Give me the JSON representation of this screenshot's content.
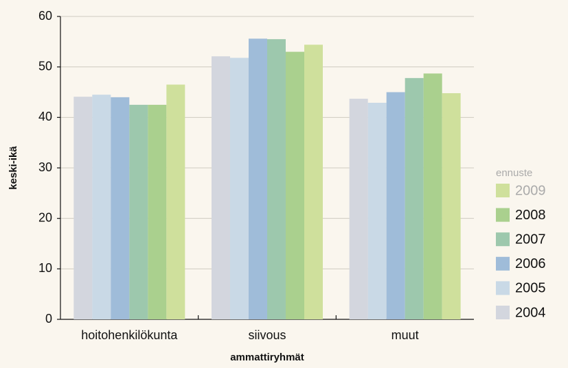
{
  "chart_data": {
    "type": "bar",
    "xlabel": "ammattiryhmät",
    "ylabel": "keski-ikä",
    "annotation": "ennuste",
    "categories": [
      "hoitohenkilökunta",
      "siivous",
      "muut"
    ],
    "series": [
      {
        "name": "2004",
        "color": "#d3d6de",
        "values": [
          44.1,
          52.1,
          43.7
        ]
      },
      {
        "name": "2005",
        "color": "#c9d9e6",
        "values": [
          44.5,
          51.8,
          42.9
        ]
      },
      {
        "name": "2006",
        "color": "#9fbcd9",
        "values": [
          44.0,
          55.6,
          45.0
        ]
      },
      {
        "name": "2007",
        "color": "#9dc8ad",
        "values": [
          42.5,
          55.5,
          47.8
        ]
      },
      {
        "name": "2008",
        "color": "#aad08e",
        "values": [
          42.5,
          53.0,
          48.7
        ]
      },
      {
        "name": "2009",
        "color": "#cfe09c",
        "values": [
          46.5,
          54.4,
          44.8
        ]
      }
    ],
    "ylim": [
      0,
      60
    ],
    "yticks": [
      0,
      10,
      20,
      30,
      40,
      50,
      60
    ],
    "grid": true,
    "legend": "right"
  }
}
